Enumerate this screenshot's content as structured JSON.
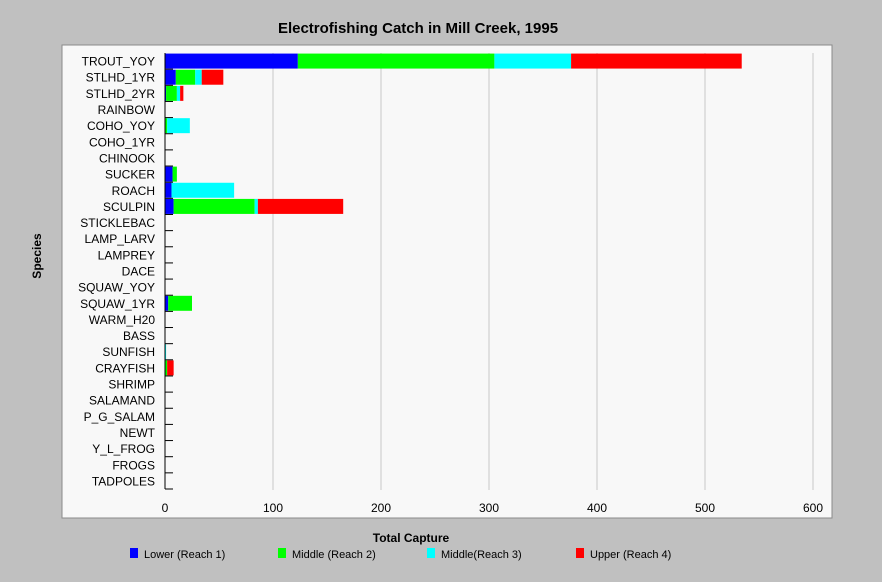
{
  "chart_data": {
    "type": "bar",
    "orientation": "horizontal",
    "stacked": true,
    "title": "Electrofishing Catch in Mill Creek, 1995",
    "xlabel": "Total Capture",
    "ylabel": "Species",
    "xlim": [
      0,
      600
    ],
    "xticks": [
      0,
      100,
      200,
      300,
      400,
      500,
      600
    ],
    "grid": true,
    "legend_position": "bottom",
    "colors": {
      "plot_background": "#f8f8f8",
      "page_background": "#c0c0c0"
    },
    "categories": [
      "TROUT_YOY",
      "STLHD_1YR",
      "STLHD_2YR",
      "RAINBOW",
      "COHO_YOY",
      "COHO_1YR",
      "CHINOOK",
      "SUCKER",
      "ROACH",
      "SCULPIN",
      "STICKLEBAC",
      "LAMP_LARV",
      "LAMPREY",
      "DACE",
      "SQUAW_YOY",
      "SQUAW_1YR",
      "WARM_H20",
      "BASS",
      "SUNFISH",
      "CRAYFISH",
      "SHRIMP",
      "SALAMAND",
      "P_G_SALAM",
      "NEWT",
      "Y_L_FROG",
      "FROGS",
      "TADPOLES"
    ],
    "series": [
      {
        "name": "Lower (Reach 1)",
        "color": "#0000ff",
        "values": [
          123,
          10,
          1,
          0,
          0,
          0,
          0,
          7,
          6,
          8,
          0,
          0,
          0,
          0,
          0,
          3,
          0,
          0,
          0,
          0,
          0,
          0,
          0,
          0,
          0,
          0,
          0
        ]
      },
      {
        "name": "Middle (Reach 2)",
        "color": "#00ff00",
        "values": [
          182,
          18,
          10,
          0,
          2,
          0,
          0,
          4,
          0,
          75,
          0,
          0,
          0,
          0,
          0,
          22,
          0,
          0,
          0,
          2,
          0,
          0,
          0,
          0,
          0,
          0,
          0
        ]
      },
      {
        "name": "Middle(Reach 3)",
        "color": "#00ffff",
        "values": [
          71,
          6,
          3,
          0,
          21,
          0,
          0,
          0,
          58,
          3,
          0,
          0,
          0,
          0,
          0,
          0,
          0,
          0,
          1,
          0,
          0,
          0,
          0,
          0,
          0,
          0,
          0
        ]
      },
      {
        "name": "Upper (Reach 4)",
        "color": "#ff0000",
        "values": [
          158,
          20,
          3,
          0,
          0,
          0,
          0,
          0,
          0,
          79,
          0,
          0,
          0,
          0,
          0,
          0,
          0,
          0,
          0,
          6,
          0,
          0,
          0,
          0,
          0,
          0,
          0
        ]
      }
    ]
  }
}
